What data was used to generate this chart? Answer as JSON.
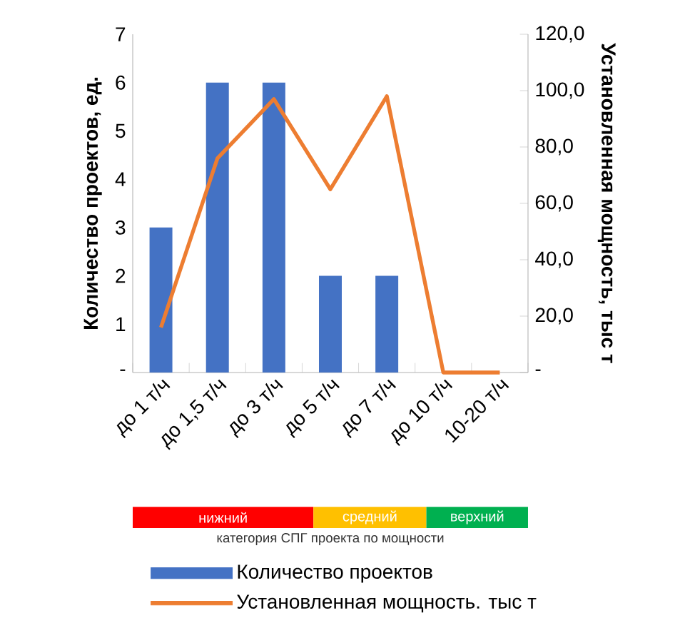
{
  "chart_data": {
    "type": "bar",
    "categories": [
      "до 1 т/ч",
      "до 1,5 т/ч",
      "до 3 т/ч",
      "до 5 т/ч",
      "до 7 т/ч",
      "до 10 т/ч",
      "10-20 т/ч"
    ],
    "series": [
      {
        "name": "Количество проектов",
        "color": "#4472c4",
        "values": [
          3,
          6,
          6,
          2,
          2,
          0,
          0
        ]
      },
      {
        "name": "Установленная мощность. тыс т",
        "type": "line",
        "axis": "y2",
        "color": "#ed7d31",
        "values": [
          16,
          76,
          97,
          65,
          98,
          0,
          0
        ]
      }
    ],
    "ylabel": "Количество проектов, ед.",
    "y2label": "Установленная мощность, тыс т",
    "ylim": [
      0,
      7
    ],
    "yticks": [
      {
        "value": 0,
        "label": "-"
      },
      1,
      2,
      3,
      4,
      5,
      6,
      7
    ],
    "y2lim": [
      0,
      120
    ],
    "y2ticks": [
      {
        "value": 0,
        "label": "-"
      },
      {
        "value": 20,
        "label": "20,0"
      },
      {
        "value": 40,
        "label": "40,0"
      },
      {
        "value": 60,
        "label": "60,0"
      },
      {
        "value": 80,
        "label": "80,0"
      },
      {
        "value": 100,
        "label": "100,0"
      },
      {
        "value": 120,
        "label": "120,0"
      }
    ],
    "annotations": [
      "нижний",
      "средний",
      "верхний",
      "категория СПГ проекта по мощности"
    ],
    "grid": false,
    "legend": "bottom"
  }
}
